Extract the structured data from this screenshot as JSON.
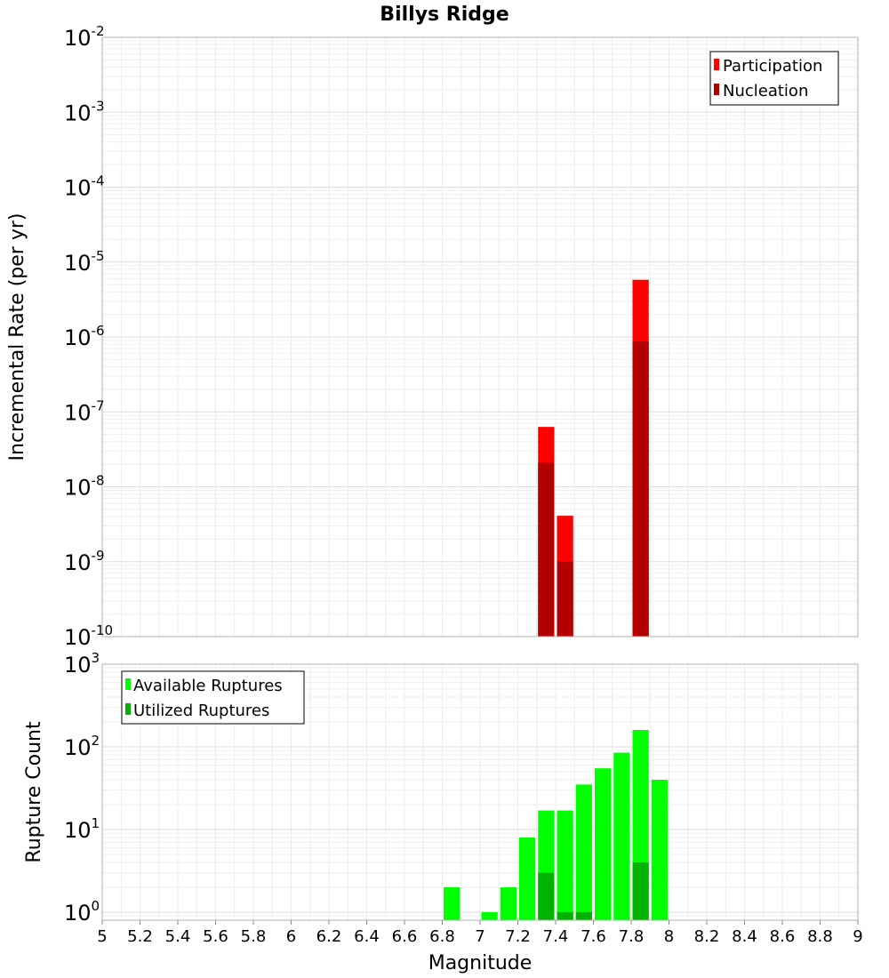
{
  "chart_data": [
    {
      "type": "bar",
      "title": "Billys Ridge",
      "xlabel": "Magnitude",
      "ylabel": "Incremental Rate (per yr)",
      "yscale": "log",
      "xlim": [
        5,
        9
      ],
      "ylim": [
        1e-10,
        0.01
      ],
      "bar_width": 0.1,
      "x_ticks": [
        "5",
        "5.2",
        "5.4",
        "5.6",
        "5.8",
        "6",
        "6.2",
        "6.4",
        "6.6",
        "6.8",
        "7",
        "7.2",
        "7.4",
        "7.6",
        "7.8",
        "8",
        "8.2",
        "8.4",
        "8.6",
        "8.8",
        "9"
      ],
      "y_tick_exponents": [
        "-10",
        "-9",
        "-8",
        "-7",
        "-6",
        "-5",
        "-4",
        "-3",
        "-2"
      ],
      "legend": {
        "placement": "top-right"
      },
      "grid": true,
      "series": [
        {
          "name": "Participation",
          "color": "#ff0000",
          "x": [
            7.35,
            7.45,
            7.85
          ],
          "values": [
            6.3e-08,
            4.1e-09,
            5.8e-06
          ]
        },
        {
          "name": "Nucleation",
          "color": "#b30000",
          "x": [
            7.35,
            7.45,
            7.85
          ],
          "values": [
            2.1e-08,
            1e-09,
            8.7e-07
          ]
        }
      ]
    },
    {
      "type": "bar",
      "title": "",
      "xlabel": "Magnitude",
      "ylabel": "Rupture Count",
      "yscale": "log",
      "xlim": [
        5,
        9
      ],
      "ylim": [
        0.8,
        1000
      ],
      "bar_width": 0.1,
      "y_tick_exponents": [
        "0",
        "1",
        "2",
        "3"
      ],
      "legend": {
        "placement": "top-left"
      },
      "grid": true,
      "series": [
        {
          "name": "Available Ruptures",
          "color": "#00ff00",
          "x": [
            6.85,
            7.05,
            7.15,
            7.25,
            7.35,
            7.45,
            7.55,
            7.65,
            7.75,
            7.85,
            7.95
          ],
          "values": [
            2,
            1,
            2,
            8,
            17,
            17,
            35,
            55,
            85,
            160,
            40
          ]
        },
        {
          "name": "Utilized Ruptures",
          "color": "#00b300",
          "x": [
            7.35,
            7.45,
            7.55,
            7.85
          ],
          "values": [
            3,
            1,
            1,
            4
          ]
        }
      ]
    }
  ]
}
